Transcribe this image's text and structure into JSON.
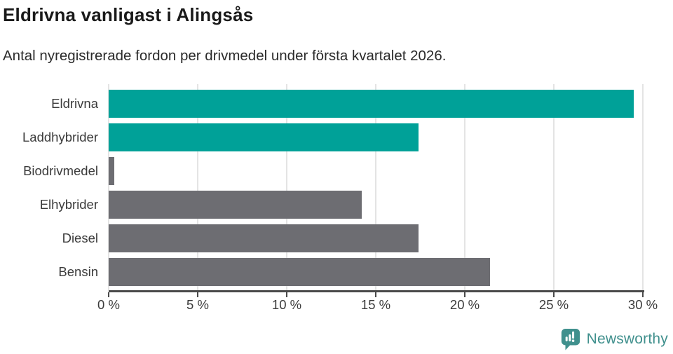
{
  "header": {
    "title": "Eldrivna vanligast i Alingsås",
    "subtitle": "Antal nyregistrerade fordon per drivmedel under första kvartalet 2026."
  },
  "chart_data": {
    "type": "bar",
    "orientation": "horizontal",
    "title": "Eldrivna vanligast i Alingsås",
    "subtitle": "Antal nyregistrerade fordon per drivmedel under första kvartalet 2026.",
    "categories": [
      "Eldrivna",
      "Laddhybrider",
      "Biodrivmedel",
      "Elhybrider",
      "Diesel",
      "Bensin"
    ],
    "values": [
      29.5,
      17.4,
      0.3,
      14.2,
      17.4,
      21.4
    ],
    "unit": "%",
    "bar_color_keys": [
      "highlight",
      "highlight",
      "neutral",
      "neutral",
      "neutral",
      "neutral"
    ],
    "xlabel": "",
    "ylabel": "",
    "xlim": [
      0,
      30
    ],
    "x_ticks": [
      0,
      5,
      10,
      15,
      20,
      25,
      30
    ],
    "x_tick_labels": [
      "0 %",
      "5 %",
      "10 %",
      "15 %",
      "20 %",
      "25 %",
      "30 %"
    ],
    "grid": true,
    "legend": false
  },
  "colors": {
    "highlight": "#00a198",
    "neutral": "#6d6d72",
    "gridline": "#e4e4e4",
    "axis": "#4a4a4a",
    "brand": "#40908d"
  },
  "footer": {
    "brand_label": "Newsworthy"
  }
}
